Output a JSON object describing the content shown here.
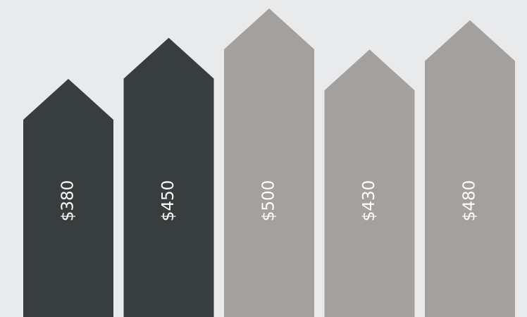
{
  "chart_data": {
    "type": "arrow-bar",
    "categories": [
      null,
      null,
      null,
      null,
      null
    ],
    "values": [
      380,
      450,
      500,
      430,
      480
    ],
    "value_labels": [
      "$380",
      "$450",
      "$500",
      "$430",
      "$480"
    ],
    "colors": [
      "#383e3e",
      "#383e3e",
      "#a4a09e",
      "#a4a09e",
      "#a4a09e"
    ]
  }
}
